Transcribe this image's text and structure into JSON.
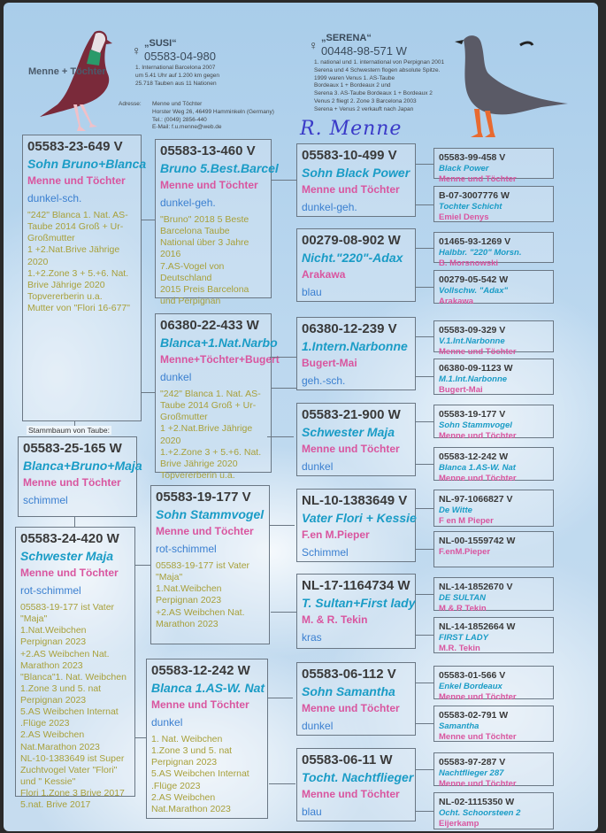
{
  "header": {
    "brand_label": "Menne + Töchter",
    "sire_top": {
      "symbol": "♀",
      "title": "„SUSI“",
      "ring": "05583-04-980",
      "notes": "1. International Barcelona 2007\num 5.41 Uhr auf 1.200 km gegen\n25.718 Tauben aus 11 Nationen"
    },
    "dam_top": {
      "symbol": "♀",
      "title": "„SERENA“",
      "ring": "00448-98-571 W",
      "notes": "1. national und 1. international von Perpignan 2001\nSerena und 4 Schwestern flogen absolute Spitze.\n1999 waren Venus 1. AS-Taube\nBordeaux 1 + Bordeaux 2 und\nSerena 3. AS-Taube Bordeaux 1 + Bordeaux 2\nVenus 2 fliegt 2. Zone 3 Barcelona 2003\nSerena + Venus 2 verkauft nach Japan"
    },
    "address_label": "Adresse:",
    "address_lines": "Menne und Töchter\nHorster Weg 26, 46499 Hamminkeln (Germany)\nTel.: (0049) 2856-440\nE-Mail: f.u.menne@web.de",
    "signature": "R. Menne"
  },
  "subject_label": "Stammbaum von Taube:",
  "pigeons": [
    {
      "id": "05583-25-165 W",
      "name": "Blanca+Bruno+Maja",
      "breeder": "Menne und Töchter",
      "color": "schimmel"
    },
    {
      "id": "05583-23-649 V",
      "name": "Sohn Bruno+Blanca",
      "breeder": "Menne und Töchter",
      "color": "dunkel-sch.",
      "notes": "\"242\" Blanca 1. Nat. AS-Taube 2014  Groß + Ur-Großmutter\n1 +2.Nat.Brive Jährige 2020\n1.+2.Zone 3 + 5.+6. Nat. Brive Jährige 2020\nTopvererberin u.a.\nMutter von \"Flori 16-677\""
    },
    {
      "id": "05583-24-420 W",
      "name": "Schwester Maja",
      "breeder": "Menne und Töchter",
      "color": "rot-schimmel",
      "notes": "05583-19-177 ist Vater \"Maja\"\n1.Nat.Weibchen Perpignan 2023\n+2.AS Weibchen Nat. Marathon 2023\n\"Blanca\"1. Nat. Weibchen 1.Zone 3 und 5. nat Perpignan 2023\n5.AS Weibchen Internat .Flüge 2023\n2.AS  Weibchen Nat.Marathon 2023\nNL-10-1383649 ist Super Zuchtvogel Vater \"Flori\" und \" Kessie\"\nFlori 1.Zone 3 Brive 2017\n5.nat. Brive 2017"
    },
    {
      "id": "05583-13-460 V",
      "name": "Bruno 5.Best.Barcel",
      "breeder": "Menne und Töchter",
      "color": "dunkel-geh.",
      "notes": "\"Bruno\" 2018 5 Beste Barcelona Taube National über 3 Jahre 2016\n7.AS-Vogel von Deutschland\n2015 Preis  Barcelona und Perpignan"
    },
    {
      "id": "06380-22-433 W",
      "name": "Blanca+1.Nat.Narbo",
      "breeder": "Menne+Töchter+Bugert",
      "color": "dunkel",
      "notes": "\"242\" Blanca 1. Nat. AS-Taube 2014  Groß + Ur-Großmutter\n1 +2.Nat.Brive Jährige 2020\n1.+2.Zone 3 + 5.+6. Nat. Brive Jährige 2020\nTopvererberin u.a."
    },
    {
      "id": "05583-19-177 V",
      "name": "Sohn Stammvogel",
      "breeder": "Menne und Töchter",
      "color": "rot-schimmel",
      "notes": "05583-19-177 ist Vater \"Maja\"\n1.Nat.Weibchen Perpignan 2023\n+2.AS Weibchen Nat. Marathon 2023"
    },
    {
      "id": "05583-12-242 W",
      "name": "Blanca 1.AS-W. Nat",
      "breeder": "Menne und Töchter",
      "color": "dunkel",
      "notes": "1. Nat. Weibchen\n1.Zone 3 und 5. nat Perpignan 2023\n5.AS Weibchen Internat .Flüge 2023\n2.AS  Weibchen Nat.Marathon 2023"
    },
    {
      "id": "05583-10-499 V",
      "name": "Sohn Black Power",
      "breeder": "Menne und Töchter",
      "color": "dunkel-geh."
    },
    {
      "id": "00279-08-902 W",
      "name": "Nicht.\"220\"-Adax",
      "breeder": "Arakawa",
      "color": "blau"
    },
    {
      "id": "06380-12-239 V",
      "name": "1.Intern.Narbonne",
      "breeder": "Bugert-Mai",
      "color": "geh.-sch."
    },
    {
      "id": "05583-21-900 W",
      "name": "Schwester Maja",
      "breeder": "Menne und Töchter",
      "color": "dunkel"
    },
    {
      "id": "NL-10-1383649 V",
      "name": "Vater Flori + Kessie",
      "breeder": "F.en M.Pieper",
      "color": "Schimmel"
    },
    {
      "id": "NL-17-1164734 W",
      "name": "T. Sultan+First lady",
      "breeder": "M. & R. Tekin",
      "color": "kras"
    },
    {
      "id": "05583-06-112 V",
      "name": "Sohn Samantha",
      "breeder": "Menne und Töchter",
      "color": "dunkel"
    },
    {
      "id": "05583-06-11 W",
      "name": "Tocht. Nachtflieger",
      "breeder": "Menne und Töchter",
      "color": "blau"
    },
    {
      "id": "05583-99-458 V",
      "name": "Black Power",
      "breeder": "Menne und Töchter"
    },
    {
      "id": "B-07-3007776 W",
      "name": "Tochter Schicht",
      "breeder": "Emiel Denys"
    },
    {
      "id": "01465-93-1269 V",
      "name": "Halbbr. \"220\" Morsn.",
      "breeder": "B. Morsnowski"
    },
    {
      "id": "00279-05-542 W",
      "name": "Vollschw. \"Adax\"",
      "breeder": "Arakawa"
    },
    {
      "id": "05583-09-329 V",
      "name": "V.1.Int.Narbonne",
      "breeder": "Menne und Töchter"
    },
    {
      "id": "06380-09-1123 W",
      "name": "M.1.Int.Narbonne",
      "breeder": "Bugert-Mai"
    },
    {
      "id": "05583-19-177 V",
      "name": "Sohn Stammvogel",
      "breeder": "Menne und Töchter"
    },
    {
      "id": "05583-12-242 W",
      "name": "Blanca 1.AS-W. Nat",
      "breeder": "Menne und Töchter"
    },
    {
      "id": "NL-97-1066827 V",
      "name": "De Witte",
      "breeder": "F en M Pieper"
    },
    {
      "id": "NL-00-1559742 W",
      "name": "",
      "breeder": "F.enM.Pieper"
    },
    {
      "id": "NL-14-1852670 V",
      "name": "DE SULTAN",
      "breeder": "M & R Tekin"
    },
    {
      "id": "NL-14-1852664 W",
      "name": "FIRST LADY",
      "breeder": "M.R. Tekin"
    },
    {
      "id": "05583-01-566 V",
      "name": "Enkel Bordeaux",
      "breeder": "Menne und Töchter"
    },
    {
      "id": "05583-02-791 W",
      "name": "Samantha",
      "breeder": "Menne und Töchter"
    },
    {
      "id": "05583-97-287 V",
      "name": "Nachtflieger 287",
      "breeder": "Menne und Töchter"
    },
    {
      "id": "NL-02-1115350 W",
      "name": "Ocht. Schoorsteen 2",
      "breeder": "Eijerkamp"
    }
  ],
  "colors": {
    "ring": "#3a3a3a",
    "name": "#1a9cc6",
    "breeder": "#d9559f",
    "color": "#3a7fd0",
    "notes": "#a8a03a"
  }
}
